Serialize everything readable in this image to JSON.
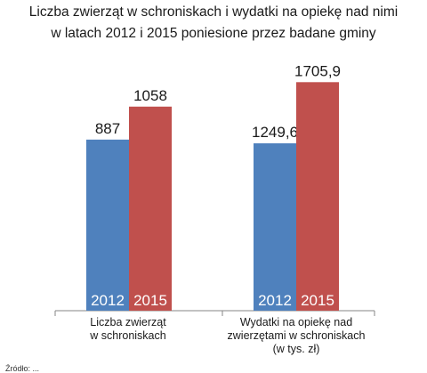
{
  "title_line1": "Liczba zwierząt w schroniskach i wydatki na opiekę nad nimi",
  "title_line2": "w latach 2012 i 2015 poniesione przez badane gminy",
  "footer_text": "Źródło: ...",
  "chart_data": [
    {
      "type": "bar",
      "category_label": [
        "Liczba zwierząt",
        "w schroniskach"
      ],
      "series": [
        {
          "name": "2012",
          "value": 887,
          "label": "887",
          "color": "#4f81bd"
        },
        {
          "name": "2015",
          "value": 1058,
          "label": "1058",
          "color": "#c0504d"
        }
      ],
      "ylim": [
        0,
        1200
      ]
    },
    {
      "type": "bar",
      "category_label": [
        "Wydatki na opiekę nad",
        "zwierzętami w schroniskach",
        "(w tys. zł)"
      ],
      "series": [
        {
          "name": "2012",
          "value": 1249.6,
          "label": "1249,6",
          "color": "#4f81bd"
        },
        {
          "name": "2015",
          "value": 1705.9,
          "label": "1705,9",
          "color": "#c0504d"
        }
      ],
      "ylim": [
        0,
        2100
      ]
    }
  ]
}
